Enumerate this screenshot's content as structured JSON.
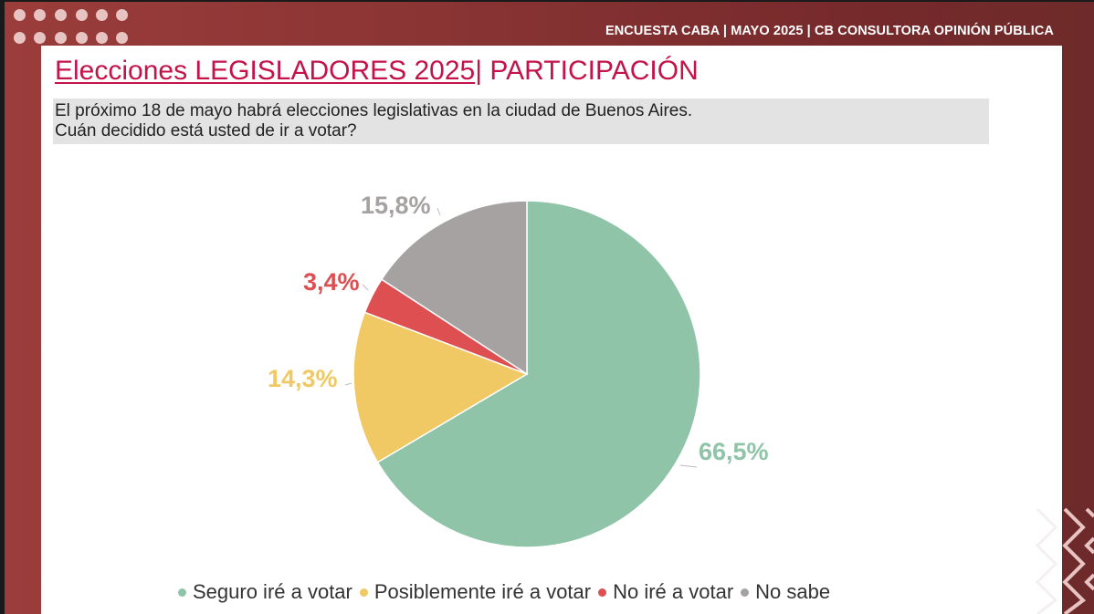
{
  "header": {
    "banner": "ENCUESTA CABA | MAYO 2025 | CB CONSULTORA OPINIÓN PÚBLICA"
  },
  "slide": {
    "title_underlined": "Elecciones LEGISLADORES 2025",
    "title_rest": "| PARTICIPACIÓN",
    "question_line1": "El próximo 18 de mayo habrá elecciones legislativas en la ciudad de Buenos Aires.",
    "question_line2": "Cuán decidido está usted de ir a votar?"
  },
  "colors": {
    "frame": "#8a3434",
    "title": "#c4124a",
    "seguro": "#8fc4a8",
    "posiblemente": "#f0c965",
    "no": "#de4f52",
    "no_sabe": "#a5a2a1"
  },
  "chart_data": {
    "type": "pie",
    "title": "Cuán decidido está usted de ir a votar?",
    "categories": [
      "Seguro iré a votar",
      "Posiblemente iré a votar",
      "No iré a votar",
      "No sabe"
    ],
    "values": [
      66.5,
      14.3,
      3.4,
      15.8
    ],
    "value_labels": [
      "66,5%",
      "14,3%",
      "3,4%",
      "15,8%"
    ],
    "colors": [
      "#8fc4a8",
      "#f0c965",
      "#de4f52",
      "#a5a2a1"
    ],
    "start_angle": "12 o'clock, clockwise",
    "legend_position": "bottom"
  },
  "legend": {
    "items": [
      {
        "label": "Seguro iré a votar"
      },
      {
        "label": "Posiblemente iré a votar"
      },
      {
        "label": "No iré a votar"
      },
      {
        "label": "No sabe"
      }
    ]
  }
}
